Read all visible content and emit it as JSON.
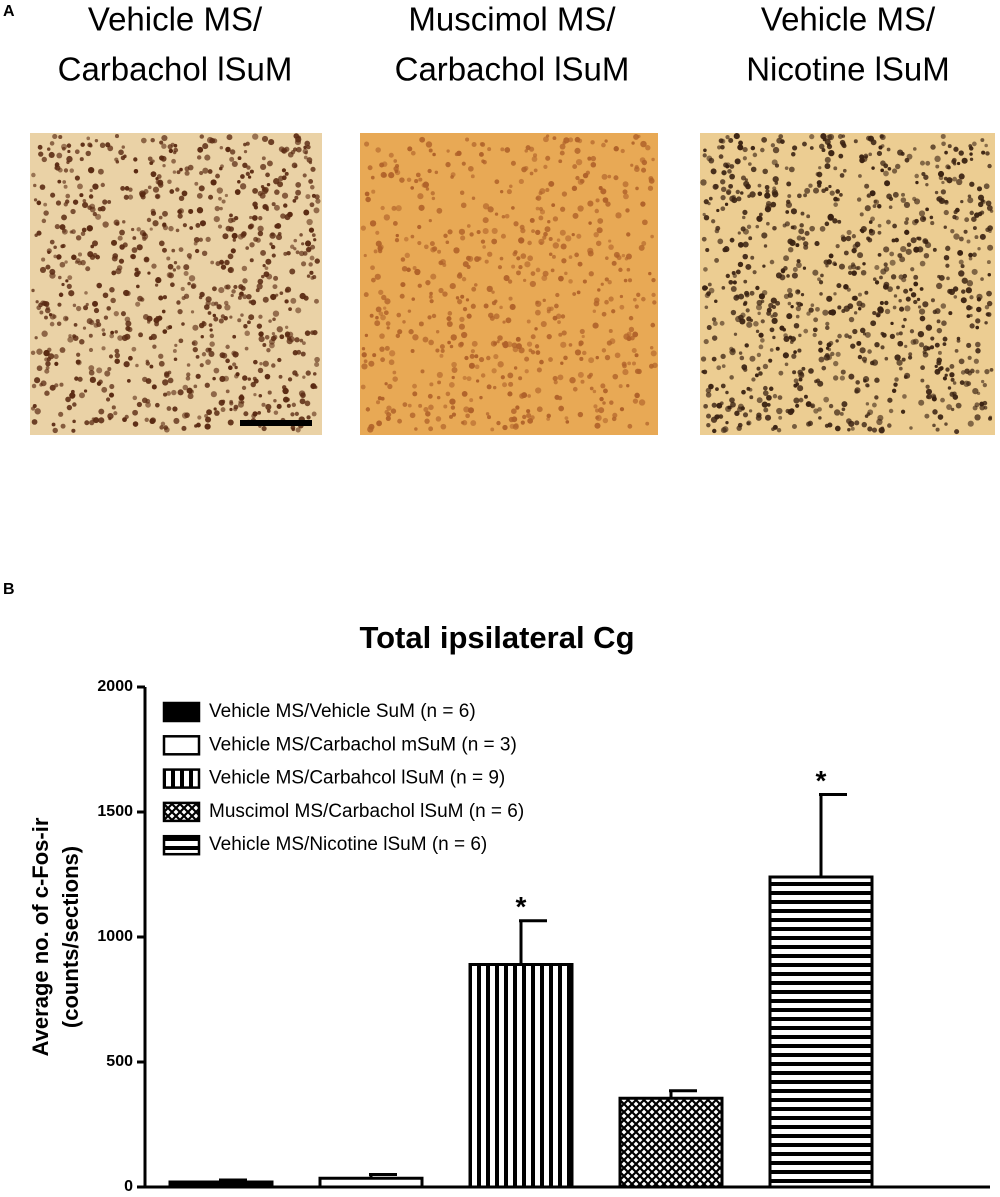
{
  "panels": {
    "a": "A",
    "b": "B"
  },
  "images": [
    {
      "caption": [
        "Vehicle MS/",
        "Carbachol lSuM"
      ]
    },
    {
      "caption": [
        "Muscimol MS/",
        "Carbachol lSuM"
      ]
    },
    {
      "caption": [
        "Vehicle MS/",
        "Nicotine lSuM"
      ]
    }
  ],
  "chart_data": {
    "type": "bar",
    "title": "Total ipsilateral Cg",
    "ylabel": [
      "Average no. of c-Fos-ir",
      "(counts/sections)"
    ],
    "ylim": [
      0,
      2000
    ],
    "yticks": [
      0,
      500,
      1000,
      1500,
      2000
    ],
    "legend": "top-left",
    "series": [
      {
        "name": "Vehicle MS/Vehicle SuM (n = 6)",
        "color": "#000000",
        "pattern": "solid",
        "values": [
          20
        ],
        "errors": [
          8
        ]
      },
      {
        "name": "Vehicle MS/Carbachol mSuM (n = 3)",
        "color": "#000000",
        "pattern": "none",
        "values": [
          35
        ],
        "errors": [
          15
        ]
      },
      {
        "name": "Vehicle MS/Carbahcol lSuM (n = 9)",
        "color": "#000000",
        "pattern": "vertical",
        "values": [
          890
        ],
        "errors": [
          175
        ],
        "annotation": "*"
      },
      {
        "name": "Muscimol MS/Carbachol lSuM (n = 6)",
        "color": "#000000",
        "pattern": "crosshatch",
        "values": [
          355
        ],
        "errors": [
          30
        ]
      },
      {
        "name": "Vehicle MS/Nicotine lSuM (n = 6)",
        "color": "#000000",
        "pattern": "horizontal",
        "values": [
          1240
        ],
        "errors": [
          330
        ],
        "annotation": "*"
      }
    ]
  }
}
